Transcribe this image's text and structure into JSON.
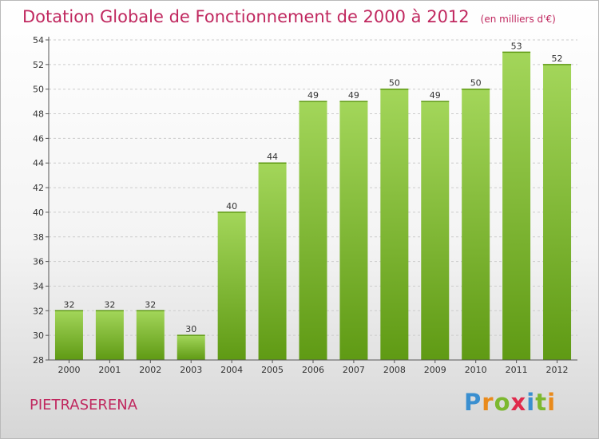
{
  "header": {
    "title": "Dotation Globale de Fonctionnement de 2000 à 2012",
    "unit": "(en milliers d'€)"
  },
  "footer": {
    "place": "PIETRASERENA",
    "logo_letters": [
      "P",
      "r",
      "o",
      "x",
      "i",
      "t",
      "i"
    ],
    "logo_colors": [
      "#3a8fd0",
      "#e98a1b",
      "#7cb82f",
      "#e02a4c",
      "#3a8fd0",
      "#7cb82f",
      "#e98a1b"
    ]
  },
  "colors": {
    "title": "#c0285f",
    "bar_light": "#a3d65a",
    "bar_dark": "#5f9a14",
    "grid": "#cccccc",
    "axis": "#555555"
  },
  "chart_data": {
    "type": "bar",
    "title": "Dotation Globale de Fonctionnement de 2000 à 2012",
    "subtitle": "(en milliers d'€)",
    "xlabel": "",
    "ylabel": "",
    "categories": [
      "2000",
      "2001",
      "2002",
      "2003",
      "2004",
      "2005",
      "2006",
      "2007",
      "2008",
      "2009",
      "2010",
      "2011",
      "2012"
    ],
    "values": [
      32,
      32,
      32,
      30,
      40,
      44,
      49,
      49,
      50,
      49,
      50,
      53,
      52
    ],
    "ylim": [
      28,
      54
    ],
    "yticks": [
      28,
      30,
      32,
      34,
      36,
      38,
      40,
      42,
      44,
      46,
      48,
      50,
      52,
      54
    ],
    "grid": "horizontal dashed",
    "legend": "none"
  }
}
